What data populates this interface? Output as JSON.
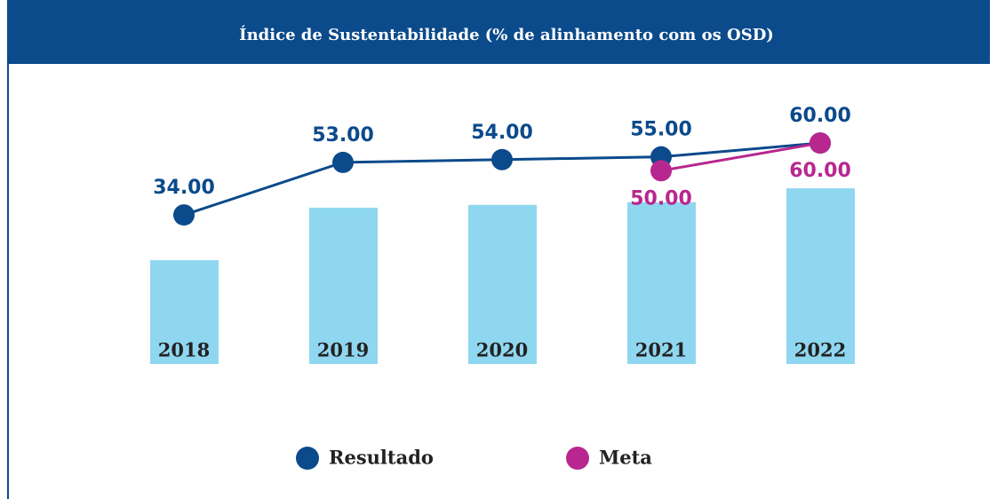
{
  "chart_data": {
    "type": "line",
    "title": "Índice de Sustentabilidade (% de alinhamento com  os OSD)",
    "categories": [
      "2018",
      "2019",
      "2020",
      "2021",
      "2022"
    ],
    "series": [
      {
        "name": "Resultado",
        "color": "#0b4a8b",
        "values": [
          34,
          53,
          54,
          55,
          60
        ],
        "value_labels": [
          "34.00",
          "53.00",
          "54.00",
          "55.00",
          "60.00"
        ]
      },
      {
        "name": "Meta",
        "color": "#b8268f",
        "values": [
          null,
          null,
          null,
          50,
          60
        ],
        "value_labels": [
          null,
          null,
          null,
          "50.00",
          "60.00"
        ]
      }
    ],
    "bar_color": "#8fd7f0",
    "ylim": [
      0,
      100
    ]
  }
}
